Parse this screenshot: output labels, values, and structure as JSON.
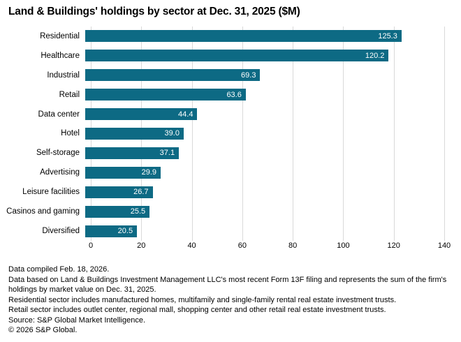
{
  "title": "Land & Buildings' holdings by sector at Dec. 31, 2025 ($M)",
  "chart_data": {
    "type": "bar",
    "orientation": "horizontal",
    "title": "Land & Buildings' holdings by sector at Dec. 31, 2025 ($M)",
    "categories": [
      "Residential",
      "Healthcare",
      "Industrial",
      "Retail",
      "Data center",
      "Hotel",
      "Self-storage",
      "Advertising",
      "Leisure facilities",
      "Casinos and gaming",
      "Diversified"
    ],
    "values": [
      125.3,
      120.2,
      69.3,
      63.6,
      44.4,
      39.0,
      37.1,
      29.9,
      26.7,
      25.5,
      20.5
    ],
    "value_labels": [
      "125.3",
      "120.2",
      "69.3",
      "63.6",
      "44.4",
      "39.0",
      "37.1",
      "29.9",
      "26.7",
      "25.5",
      "20.5"
    ],
    "xlabel": "",
    "ylabel": "",
    "xlim": [
      0,
      140
    ],
    "x_ticks": [
      "0",
      "20",
      "40",
      "60",
      "80",
      "100",
      "120",
      "140"
    ],
    "grid": "vertical-on",
    "legend": "none",
    "bar_color": "#0d6a84",
    "gridline_color": "#d9d9d9",
    "value_label_color": "#ffffff"
  },
  "footnotes": [
    "Data compiled Feb. 18, 2026.",
    "Data based on Land & Buildings Investment Management LLC's most recent Form 13F filing and represents the sum of the firm's holdings by market value on Dec. 31, 2025.",
    "Residential sector includes manufactured homes, multifamily and single-family rental real estate investment trusts.",
    "Retail sector includes outlet center, regional mall, shopping center and other retail real estate investment trusts.",
    "Source: S&P Global Market Intelligence.",
    "© 2026 S&P Global."
  ]
}
